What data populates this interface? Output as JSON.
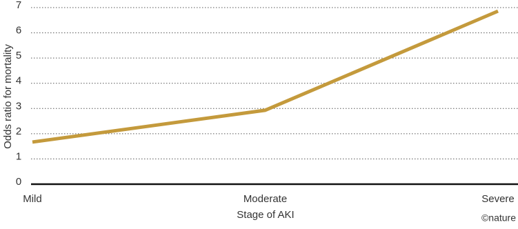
{
  "chart_data": {
    "type": "line",
    "x_label": "Stage of AKI",
    "y_label": "Odds ratio for mortality",
    "credit": "©nature",
    "categories": [
      "Mild",
      "Moderate",
      "Severe"
    ],
    "series": [
      {
        "name": "Odds ratio",
        "color": "#c49a3c",
        "values": [
          1.67,
          2.93,
          6.86
        ]
      }
    ],
    "ylim": [
      0,
      7
    ],
    "yticks": [
      0,
      1,
      2,
      3,
      4,
      5,
      6,
      7
    ],
    "grid": true
  }
}
